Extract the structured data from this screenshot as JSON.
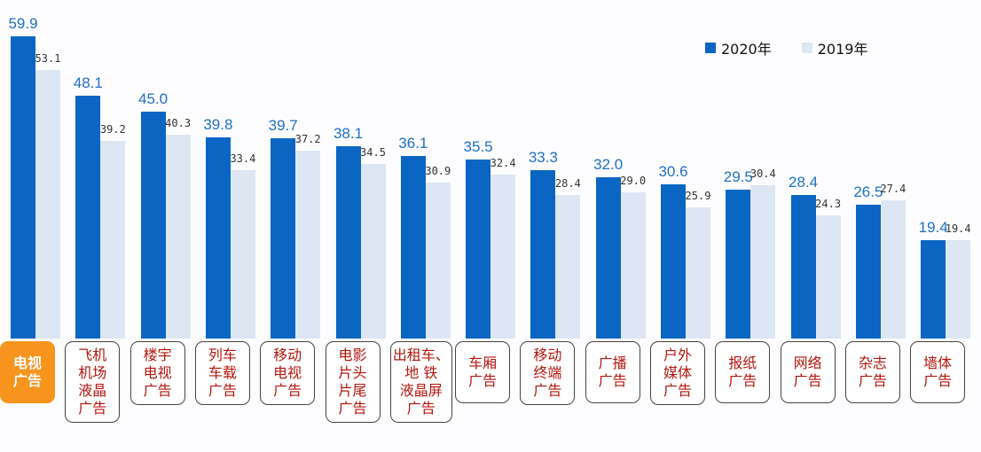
{
  "legend": {
    "items": [
      {
        "label": "2020年",
        "color": "#0a66c2"
      },
      {
        "label": "2019年",
        "color": "#dde6f3"
      }
    ]
  },
  "chart_data": {
    "type": "bar",
    "title": "",
    "xlabel": "",
    "ylabel": "",
    "grid": false,
    "legend_position": "top-right",
    "categories": [
      "电视广告",
      "飞机机场液晶广告",
      "楼宇电视广告",
      "列车车载广告",
      "移动电视广告",
      "电影片头片尾广告",
      "出租车、地铁液晶屏广告",
      "车厢广告",
      "移动终端广告",
      "广播广告",
      "户外媒体广告",
      "报纸广告",
      "网络广告",
      "杂志广告",
      "墙体广告"
    ],
    "category_lines": [
      "电视\n广告",
      "飞机\n机场\n液晶\n广告",
      "楼宇\n电视\n广告",
      "列车\n车载\n广告",
      "移动\n电视\n广告",
      "电影\n片头\n片尾\n广告",
      "出租车、\n地 铁\n液晶屏\n广告",
      "车厢\n广告",
      "移动\n终端\n广告",
      "广播\n广告",
      "户外\n媒体\n广告",
      "报纸\n广告",
      "网络\n广告",
      "杂志\n广告",
      "墙体\n广告"
    ],
    "highlighted_category": 0,
    "series": [
      {
        "name": "2020年",
        "color": "#0a66c2",
        "values": [
          59.9,
          48.1,
          45.0,
          39.8,
          39.7,
          38.1,
          36.1,
          35.5,
          33.3,
          32.0,
          30.6,
          29.5,
          28.4,
          26.5,
          19.4
        ],
        "labels": [
          "59.9",
          "48.1",
          "45.0",
          "39.8",
          "39.7",
          "38.1",
          "36.1",
          "35.5",
          "33.3",
          "32.0",
          "30.6",
          "29.5",
          "28.4",
          "26.5",
          "19.4"
        ]
      },
      {
        "name": "2019年",
        "color": "#dde6f3",
        "values": [
          53.1,
          39.2,
          40.3,
          33.4,
          37.2,
          34.5,
          30.9,
          32.4,
          28.4,
          29.0,
          25.9,
          30.4,
          24.3,
          27.4,
          19.4
        ],
        "labels": [
          "53.1",
          "39.2",
          "40.3",
          "33.4",
          "37.2",
          "34.5",
          "30.9",
          "32.4",
          "28.4",
          "29.0",
          "25.9",
          "30.4",
          "24.3",
          "27.4",
          "19.4"
        ]
      }
    ],
    "ylim": [
      0,
      60
    ]
  }
}
